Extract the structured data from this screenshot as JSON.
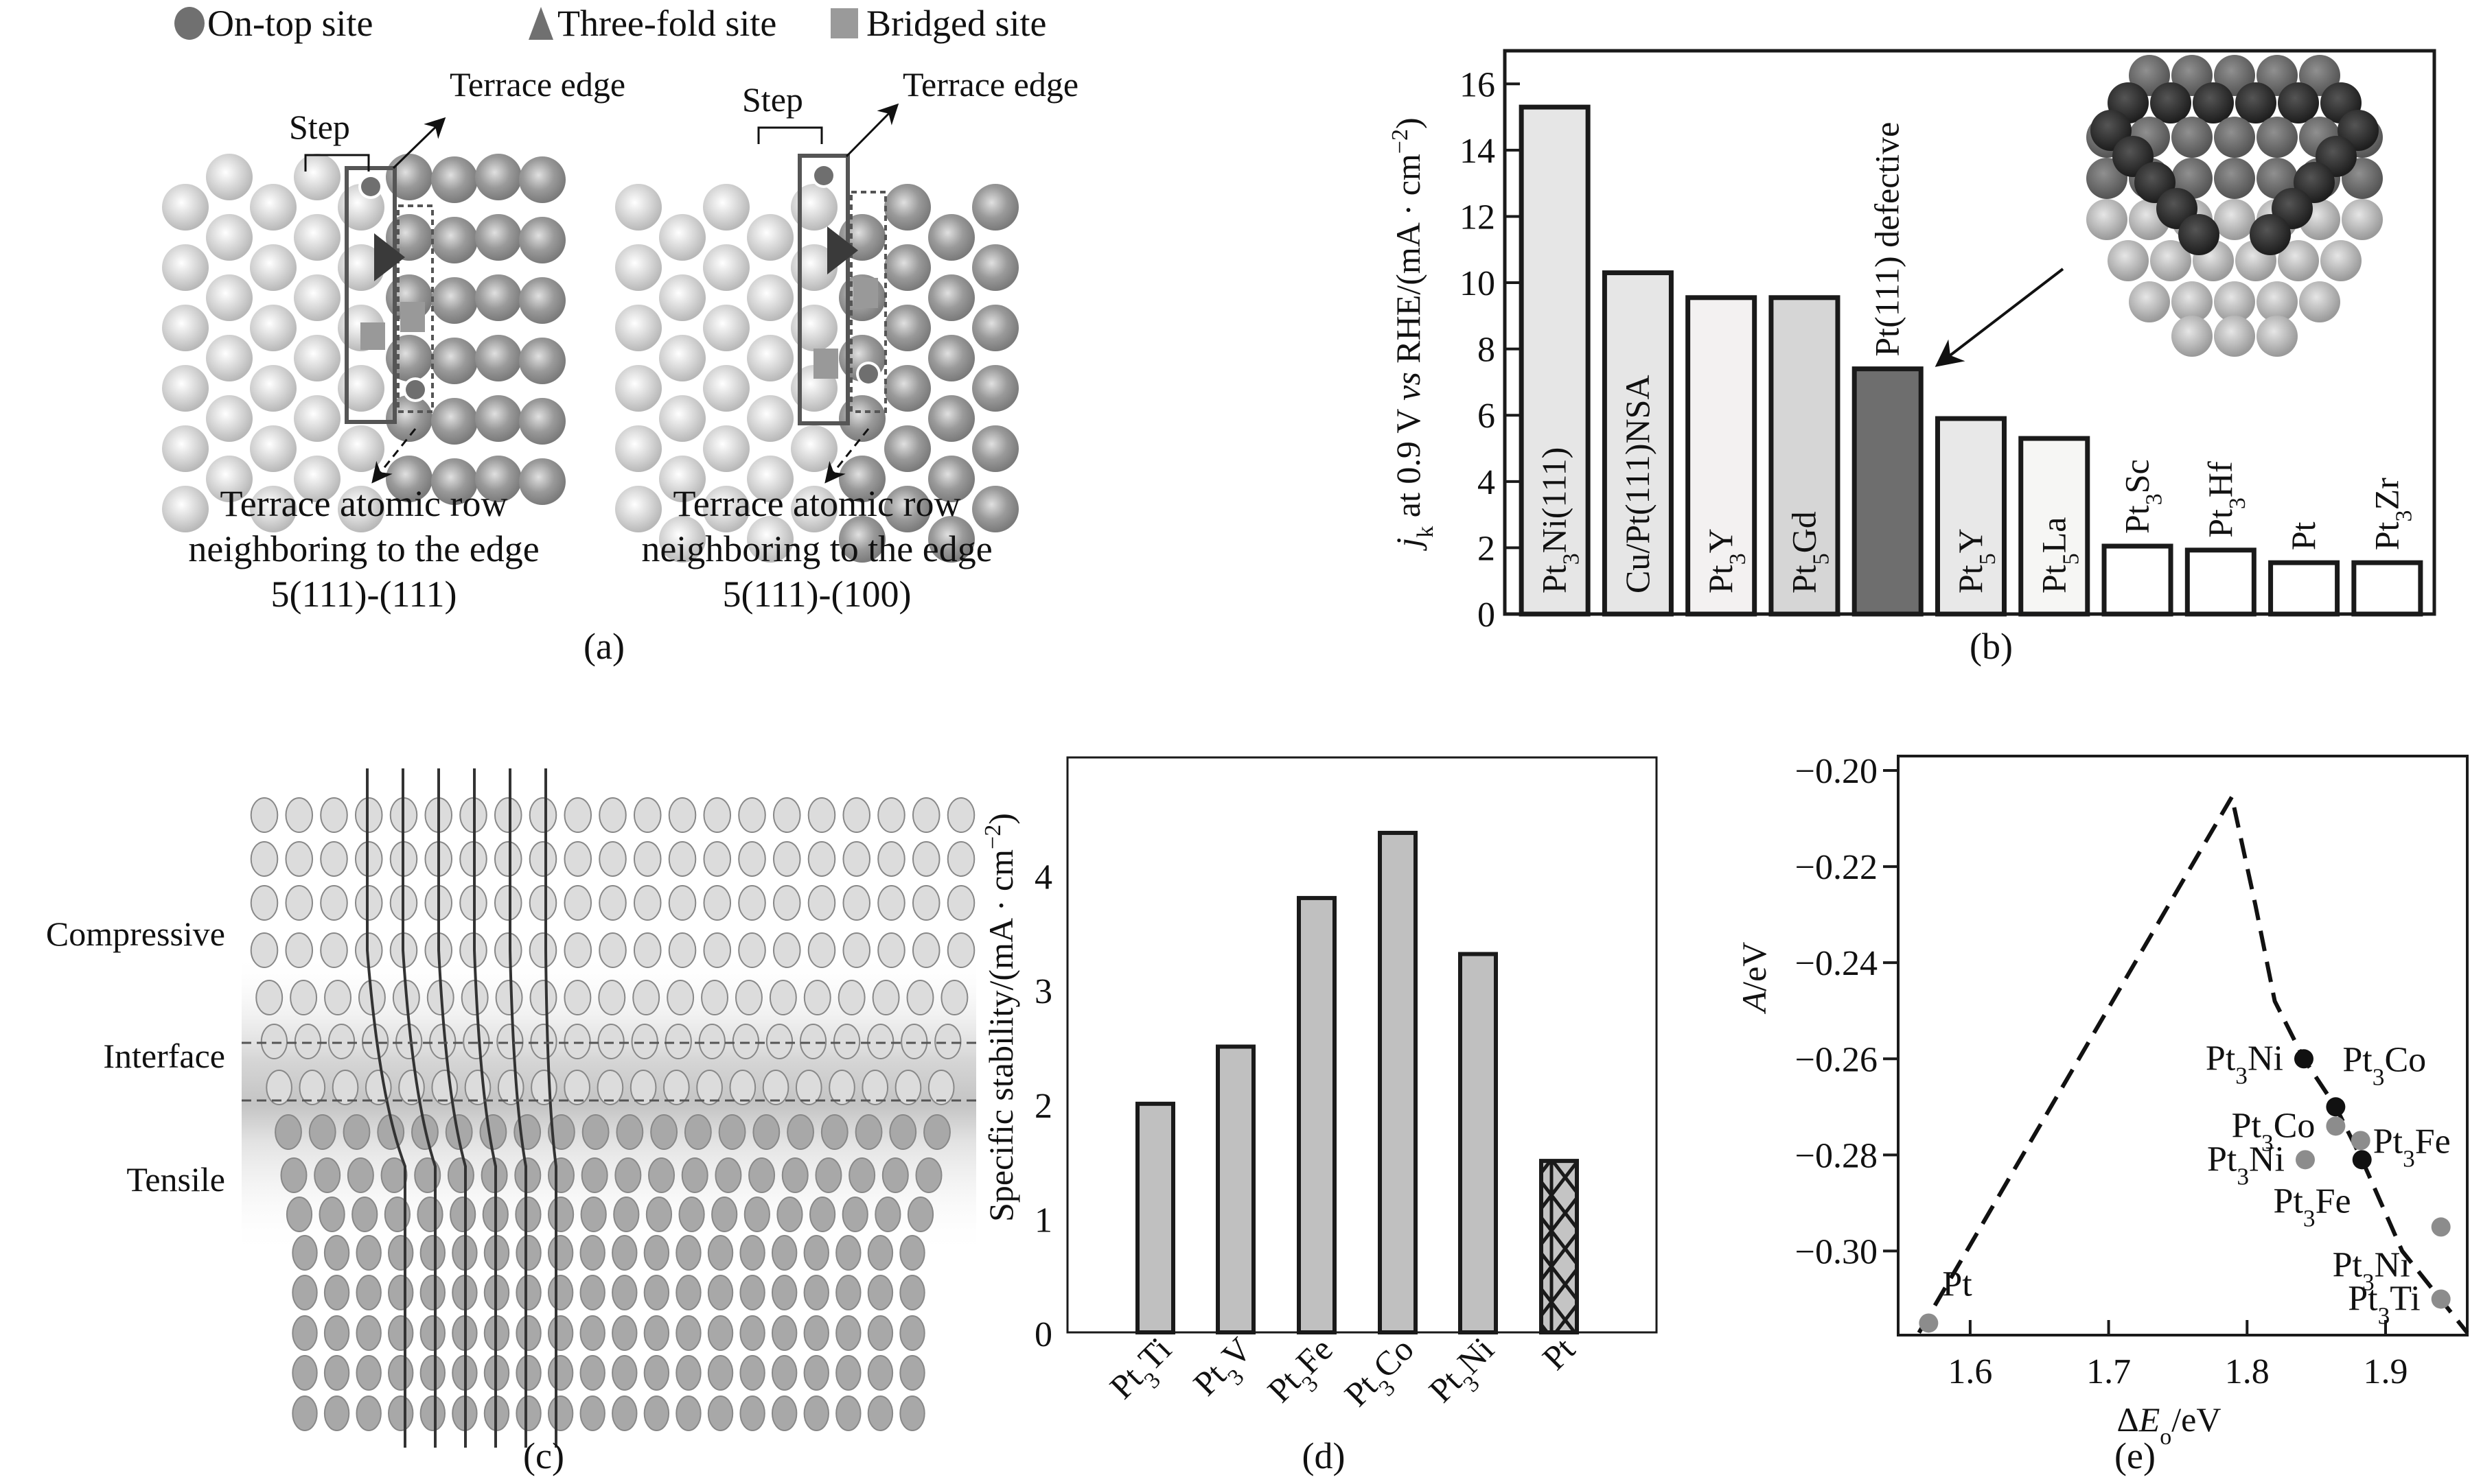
{
  "legend": {
    "items": [
      {
        "shape": "circle",
        "label": "On-top site",
        "color": "#707070"
      },
      {
        "shape": "triangle",
        "label": "Three-fold site",
        "color": "#707070"
      },
      {
        "shape": "square",
        "label": "Bridged site",
        "color": "#9a9a9a"
      }
    ]
  },
  "panel_a": {
    "label": "(a)",
    "structures": [
      {
        "step_label": "Step",
        "edge_label": "Terrace edge",
        "row_caption_1": "Terrace atomic row",
        "row_caption_2": "neighboring to the edge",
        "surface": "5(111)-(111)"
      },
      {
        "step_label": "Step",
        "edge_label": "Terrace edge",
        "row_caption_1": "Terrace atomic row",
        "row_caption_2": "neighboring to the edge",
        "surface": "5(111)-(100)"
      }
    ],
    "colors": {
      "terrace_atom": "#cfcfcf",
      "step_atom": "#8e8e8e",
      "site_marker": "#6f6f6f",
      "bridge_marker": "#999999",
      "threefold_marker": "#3a3a3a"
    }
  },
  "panel_c": {
    "label": "(c)",
    "region_labels": [
      "Compressive",
      "Interface",
      "Tensile"
    ],
    "colors": {
      "top_atom": "#dcdcdc",
      "bottom_atom": "#a8a8a8"
    }
  },
  "chart_data": [
    {
      "id": "b",
      "type": "bar",
      "panel_label": "(b)",
      "title": "",
      "xlabel": "",
      "ylabel_parts": {
        "j": "j",
        "sub": "k",
        "rest": " at 0.9 V ",
        "vs": "vs",
        "tail": " RHE/(mA · cm",
        "sup": "−2",
        "close": ")"
      },
      "ylim": [
        0,
        17
      ],
      "yticks": [
        0,
        2,
        4,
        6,
        8,
        10,
        12,
        14,
        16
      ],
      "categories": [
        "Pt3Ni(111)",
        "Cu/Pt(111)NSA",
        "Pt3Y",
        "Pt5Gd",
        "Pt(111) defective",
        "Pt5Y",
        "Pt5La",
        "Pt3Sc",
        "Pt3Hf",
        "Pt",
        "Pt3Zr"
      ],
      "category_labels": [
        {
          "base": "Pt",
          "sub": "3",
          "rest": "Ni(111)"
        },
        {
          "base": "Cu/Pt(111)NSA",
          "sub": "",
          "rest": ""
        },
        {
          "base": "Pt",
          "sub": "3",
          "rest": "Y"
        },
        {
          "base": "Pt",
          "sub": "5",
          "rest": "Gd"
        },
        {
          "base": "Pt(111) defective",
          "sub": "",
          "rest": ""
        },
        {
          "base": "Pt",
          "sub": "5",
          "rest": "Y"
        },
        {
          "base": "Pt",
          "sub": "5",
          "rest": "La"
        },
        {
          "base": "Pt",
          "sub": "3",
          "rest": "Sc"
        },
        {
          "base": "Pt",
          "sub": "3",
          "rest": "Hf"
        },
        {
          "base": "Pt",
          "sub": "",
          "rest": ""
        },
        {
          "base": "Pt",
          "sub": "3",
          "rest": "Zr"
        }
      ],
      "label_inside": [
        true,
        true,
        true,
        true,
        false,
        true,
        true,
        false,
        false,
        false,
        false
      ],
      "values": [
        15.3,
        10.3,
        9.55,
        9.55,
        7.4,
        5.9,
        5.3,
        2.05,
        1.93,
        1.55,
        1.55
      ],
      "fills": [
        "#e6e6e6",
        "#e6e6e6",
        "#f3f1f1",
        "#d6d6d6",
        "#6e6e6e",
        "#e8e8e8",
        "#f6f6f4",
        "#ffffff",
        "#ffffff",
        "#ffffff",
        "#ffffff"
      ],
      "annotation": {
        "text": "inset: Pt(111) defective nanoparticle model",
        "points_to": "Pt(111) defective"
      },
      "grid": false
    },
    {
      "id": "d",
      "type": "bar",
      "panel_label": "(d)",
      "title": "",
      "xlabel": "",
      "ylabel": "Specific stability/(mA · cm",
      "ylabel_sup": "−2",
      "ylabel_close": ")",
      "ylim": [
        0,
        5.03
      ],
      "yticks": [
        0,
        1,
        2,
        3,
        4
      ],
      "categories": [
        "Pt3Ti",
        "Pt3V",
        "Pt3Fe",
        "Pt3Co",
        "Pt3Ni",
        "Pt"
      ],
      "category_labels": [
        {
          "base": "Pt",
          "sub": "3",
          "rest": "Ti"
        },
        {
          "base": "Pt",
          "sub": "3",
          "rest": "V"
        },
        {
          "base": "Pt",
          "sub": "3",
          "rest": "Fe"
        },
        {
          "base": "Pt",
          "sub": "3",
          "rest": "Co"
        },
        {
          "base": "Pt",
          "sub": "3",
          "rest": "Ni"
        },
        {
          "base": "Pt",
          "sub": "",
          "rest": ""
        }
      ],
      "values": [
        2.0,
        2.5,
        3.8,
        4.37,
        3.31,
        1.5
      ],
      "fill": "#c0c0c0",
      "hatched": [
        false,
        false,
        false,
        false,
        false,
        true
      ],
      "grid": false
    },
    {
      "id": "e",
      "type": "scatter",
      "panel_label": "(e)",
      "title": "",
      "xlabel_parts": {
        "delta": "Δ",
        "E": "E",
        "sub": "o",
        "rest": "/eV"
      },
      "ylabel_parts": {
        "A": "A",
        "rest": "/eV"
      },
      "xlim": [
        1.548,
        1.959
      ],
      "ylim": [
        -0.3175,
        -0.197
      ],
      "xticks": [
        1.6,
        1.7,
        1.8,
        1.9
      ],
      "xtick_labels": [
        "1.6",
        "1.7",
        "1.8",
        "1.9"
      ],
      "yticks": [
        -0.2,
        -0.22,
        -0.24,
        -0.26,
        -0.28,
        -0.3
      ],
      "ytick_labels": [
        "−0.20",
        "−0.22",
        "−0.24",
        "−0.26",
        "−0.28",
        "−0.30"
      ],
      "series": [
        {
          "name": "black points",
          "color": "#111111",
          "points": [
            {
              "x": 1.841,
              "y": -0.26,
              "label": "Pt3Ni",
              "lab": {
                "base": "Pt",
                "sub": "3",
                "rest": "Ni"
              },
              "label_pos": "left"
            },
            {
              "x": 1.864,
              "y": -0.27,
              "label": "Pt3Co",
              "lab": {
                "base": "Pt",
                "sub": "3",
                "rest": "Co"
              },
              "label_pos": "upper-right"
            },
            {
              "x": 1.883,
              "y": -0.281,
              "label": "Pt3Fe",
              "lab": {
                "base": "Pt",
                "sub": "3",
                "rest": "Fe"
              },
              "label_pos": "right"
            }
          ]
        },
        {
          "name": "gray points",
          "color": "#8c8c8c",
          "points": [
            {
              "x": 1.57,
              "y": -0.315,
              "label": "Pt",
              "lab": {
                "base": "Pt",
                "sub": "",
                "rest": ""
              },
              "label_pos": "upper-right"
            },
            {
              "x": 1.864,
              "y": -0.274,
              "label": "Pt3Co",
              "lab": {
                "base": "Pt",
                "sub": "3",
                "rest": "Co"
              },
              "label_pos": "left"
            },
            {
              "x": 1.882,
              "y": -0.277,
              "label": "",
              "lab": {
                "base": "",
                "sub": "",
                "rest": ""
              },
              "label_pos": "none"
            },
            {
              "x": 1.842,
              "y": -0.281,
              "label": "Pt3Ni",
              "lab": {
                "base": "Pt",
                "sub": "3",
                "rest": "Ni"
              },
              "label_pos": "left"
            },
            {
              "x": 1.94,
              "y": -0.295,
              "label": "Pt3Ni",
              "lab": {
                "base": "Pt",
                "sub": "3",
                "rest": "Ni"
              },
              "label_pos": "lower-left"
            },
            {
              "x": 1.94,
              "y": -0.31,
              "label": "Pt3Ti",
              "lab": {
                "base": "Pt",
                "sub": "3",
                "rest": "Ti"
              },
              "label_pos": "left"
            }
          ]
        }
      ],
      "extra_labels": [
        {
          "x": 1.847,
          "y": -0.292,
          "lab": {
            "base": "Pt",
            "sub": "3",
            "rest": "Fe"
          }
        }
      ],
      "trend_line": {
        "style": "dashed",
        "points": [
          [
            1.563,
            -0.317
          ],
          [
            1.789,
            -0.2055
          ],
          [
            1.806,
            -0.228
          ],
          [
            1.82,
            -0.248
          ],
          [
            1.841,
            -0.26
          ],
          [
            1.864,
            -0.27
          ],
          [
            1.883,
            -0.281
          ],
          [
            1.912,
            -0.3
          ],
          [
            1.959,
            -0.317
          ]
        ]
      },
      "grid": false
    }
  ]
}
